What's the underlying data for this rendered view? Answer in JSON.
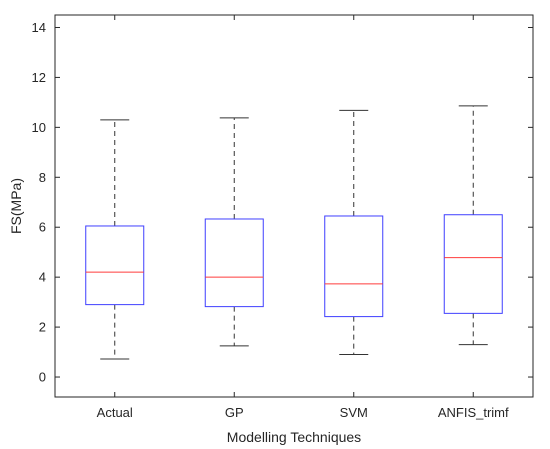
{
  "chart_data": {
    "type": "box",
    "title": "",
    "xlabel": "Modelling Techniques",
    "ylabel": "FS(MPa)",
    "ylim": [
      -0.8,
      14.5
    ],
    "yticks": [
      0,
      2,
      4,
      6,
      8,
      10,
      12,
      14
    ],
    "grid": false,
    "categories": [
      "Actual",
      "GP",
      "SVM",
      "ANFIS_trimf"
    ],
    "boxes": [
      {
        "category": "Actual",
        "min": 0.72,
        "q1": 2.9,
        "median": 4.2,
        "q3": 6.05,
        "max": 10.3
      },
      {
        "category": "GP",
        "min": 1.25,
        "q1": 2.82,
        "median": 4.0,
        "q3": 6.33,
        "max": 10.38
      },
      {
        "category": "SVM",
        "min": 0.9,
        "q1": 2.42,
        "median": 3.73,
        "q3": 6.45,
        "max": 10.68
      },
      {
        "category": "ANFIS_trimf",
        "min": 1.3,
        "q1": 2.55,
        "median": 4.78,
        "q3": 6.5,
        "max": 10.86
      }
    ],
    "colors": {
      "box": "#3f3fff",
      "median": "#ff3b3b",
      "whisker": "#333333",
      "axis": "#262626"
    }
  }
}
